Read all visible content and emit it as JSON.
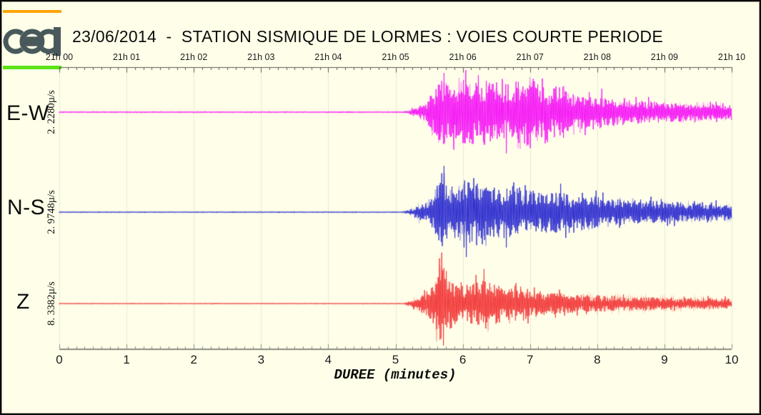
{
  "header": {
    "title": "23/06/2014  -  STATION SISMIQUE DE LORMES : VOIES COURTE PERIODE",
    "logo_text": "cea",
    "logo_color": "#49595B",
    "accent_bar_top_color": "#FFA405",
    "accent_bar_bottom_color": "#5CE313"
  },
  "top_axis": {
    "labels": [
      "21h 00",
      "21h 01",
      "21h 02",
      "21h 03",
      "21h 04",
      "21h 05",
      "21h 06",
      "21h 07",
      "21h 08",
      "21h 09",
      "21h 10"
    ]
  },
  "bottom_axis": {
    "labels": [
      "0",
      "1",
      "2",
      "3",
      "4",
      "5",
      "6",
      "7",
      "8",
      "9",
      "10"
    ],
    "xlabel": "DUREE (minutes)"
  },
  "channels": [
    {
      "name": "E-W",
      "scale_label": "2. 2280µ/s",
      "color": "#F519F5"
    },
    {
      "name": "N-S",
      "scale_label": "2. 9748µ/s",
      "color": "#3030CF"
    },
    {
      "name": "Z",
      "scale_label": "8. 3382µ/s",
      "color": "#F23B3B"
    }
  ],
  "colors": {
    "background": "#FFFFE9",
    "gridline": "#E7E7D8",
    "top_axis_line": "#5a5a52",
    "bottom_axis_line": "#8B8B80",
    "text": "#0c0c0c"
  },
  "chart_data": {
    "type": "line",
    "subtype": "seismogram",
    "title": "23/06/2014  -  STATION SISMIQUE DE LORMES : VOIES COURTE PERIODE",
    "xlabel": "DUREE (minutes)",
    "x_range_minutes": [
      0,
      10
    ],
    "time_axis_labels": [
      "21h 00",
      "21h 01",
      "21h 02",
      "21h 03",
      "21h 04",
      "21h 05",
      "21h 06",
      "21h 07",
      "21h 08",
      "21h 09",
      "21h 10"
    ],
    "grid": true,
    "event_onset_minutes": 5.2,
    "peak_minutes": 5.68,
    "series": [
      {
        "name": "E-W",
        "scale_label": "2. 2280µ/s",
        "color": "#F519F5",
        "envelope_breakpoints_min_amp": [
          [
            0,
            0.8
          ],
          [
            5.08,
            0.8
          ],
          [
            5.15,
            1.5
          ],
          [
            5.25,
            4
          ],
          [
            5.35,
            7
          ],
          [
            5.45,
            12
          ],
          [
            5.55,
            30
          ],
          [
            5.65,
            46
          ],
          [
            5.8,
            55
          ],
          [
            5.95,
            42
          ],
          [
            6.1,
            50
          ],
          [
            6.25,
            40
          ],
          [
            6.4,
            46
          ],
          [
            6.55,
            38
          ],
          [
            6.7,
            42
          ],
          [
            6.85,
            48
          ],
          [
            7.0,
            55
          ],
          [
            7.15,
            40
          ],
          [
            7.3,
            34
          ],
          [
            7.45,
            40
          ],
          [
            7.6,
            30
          ],
          [
            7.8,
            24
          ],
          [
            8.0,
            26
          ],
          [
            8.2,
            20
          ],
          [
            8.5,
            17
          ],
          [
            8.8,
            15
          ],
          [
            9.2,
            13
          ],
          [
            9.6,
            12
          ],
          [
            10,
            10
          ]
        ]
      },
      {
        "name": "N-S",
        "scale_label": "2. 9748µ/s",
        "color": "#3030CF",
        "envelope_breakpoints_min_amp": [
          [
            0,
            0.7
          ],
          [
            5.1,
            0.7
          ],
          [
            5.2,
            3
          ],
          [
            5.3,
            7
          ],
          [
            5.4,
            10
          ],
          [
            5.5,
            16
          ],
          [
            5.6,
            34
          ],
          [
            5.68,
            65
          ],
          [
            5.78,
            42
          ],
          [
            5.9,
            36
          ],
          [
            6.05,
            46
          ],
          [
            6.2,
            38
          ],
          [
            6.35,
            44
          ],
          [
            6.5,
            34
          ],
          [
            6.65,
            38
          ],
          [
            6.8,
            30
          ],
          [
            7.0,
            32
          ],
          [
            7.2,
            28
          ],
          [
            7.4,
            30
          ],
          [
            7.6,
            24
          ],
          [
            7.8,
            22
          ],
          [
            8.0,
            23
          ],
          [
            8.3,
            19
          ],
          [
            8.6,
            17
          ],
          [
            9.0,
            15
          ],
          [
            9.4,
            13
          ],
          [
            10,
            11
          ]
        ]
      },
      {
        "name": "Z",
        "scale_label": "8. 3382µ/s",
        "color": "#F23B3B",
        "envelope_breakpoints_min_amp": [
          [
            0,
            0.6
          ],
          [
            5.12,
            0.6
          ],
          [
            5.2,
            3
          ],
          [
            5.3,
            8
          ],
          [
            5.4,
            14
          ],
          [
            5.5,
            22
          ],
          [
            5.6,
            42
          ],
          [
            5.68,
            75
          ],
          [
            5.78,
            40
          ],
          [
            5.9,
            28
          ],
          [
            6.05,
            26
          ],
          [
            6.2,
            30
          ],
          [
            6.35,
            36
          ],
          [
            6.5,
            28
          ],
          [
            6.65,
            24
          ],
          [
            6.8,
            26
          ],
          [
            7.0,
            20
          ],
          [
            7.2,
            18
          ],
          [
            7.4,
            15
          ],
          [
            7.6,
            13
          ],
          [
            7.8,
            12
          ],
          [
            8.0,
            12
          ],
          [
            8.4,
            10
          ],
          [
            8.8,
            9
          ],
          [
            9.2,
            8
          ],
          [
            9.6,
            8
          ],
          [
            10,
            7
          ]
        ]
      }
    ]
  }
}
